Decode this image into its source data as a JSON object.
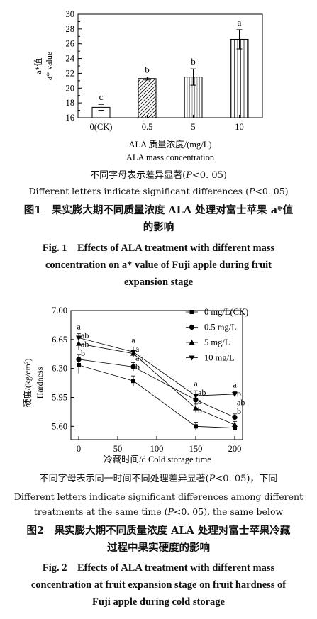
{
  "figure1": {
    "chart_data": {
      "type": "bar",
      "categories": [
        "0(CK)",
        "0.5",
        "5",
        "10"
      ],
      "values": [
        17.4,
        21.3,
        21.5,
        26.6
      ],
      "errors": [
        0.4,
        0.2,
        1.1,
        1.3
      ],
      "letters": [
        "c",
        "b",
        "b",
        "a"
      ],
      "patterns": [
        "none",
        "diagonal",
        "hatch-vertical-thin",
        "hatch-vertical"
      ],
      "ylim": [
        16,
        30
      ],
      "yticks": [
        "16",
        "18",
        "20",
        "22",
        "24",
        "26",
        "28",
        "30"
      ],
      "ylabel_cn": "a*值",
      "ylabel_en": "a* value",
      "xlabel_cn": "ALA 质量浓度/(mg/L)",
      "xlabel_en": "ALA mass concentration"
    },
    "note_cn": "不同字母表示差异显著(",
    "note_cn_p": "P",
    "note_cn_tail": "<0. 05)",
    "note_en": "Different letters indicate significant differences (",
    "note_en_p": "P",
    "note_en_tail": "<0. 05)",
    "caption_cn_1": "图1　果实膨大期不同质量浓度 ALA 处理对富士苹果 a*值",
    "caption_cn_2": "的影响",
    "caption_en_1": "Fig. 1　Effects of ALA treatment with different mass",
    "caption_en_2": "concentration on a* value of Fuji apple during fruit",
    "caption_en_3": "expansion stage"
  },
  "figure2": {
    "chart_data": {
      "type": "line",
      "x": [
        0,
        70,
        150,
        200
      ],
      "xticks": [
        "0",
        "50",
        "100",
        "150",
        "200"
      ],
      "xlim": [
        -10,
        210
      ],
      "ylim": [
        5.44,
        7.0
      ],
      "yticks": [
        "5.60",
        "5.95",
        "6.30",
        "6.65",
        "7.00"
      ],
      "ylabel_cn": "硬度/(kg/cm²)",
      "ylabel_en": "Hardness",
      "xlabel": "冷藏时间/d Cold storage time",
      "series": [
        {
          "name": "0 mg/L(CK)",
          "marker": "square",
          "values": [
            6.34,
            6.15,
            5.6,
            5.58
          ],
          "errors": [
            0.1,
            0.06,
            0.05,
            0.03
          ],
          "letters": [
            "b",
            "b",
            "b",
            "b"
          ]
        },
        {
          "name": "0.5 mg/L",
          "marker": "circle",
          "values": [
            6.41,
            6.32,
            5.92,
            5.71
          ],
          "errors": [
            0.06,
            0.05,
            0.06,
            0.04
          ],
          "letters": [
            "ab",
            "ab",
            "a",
            "ab"
          ]
        },
        {
          "name": "5 mg/L",
          "marker": "triangle-up",
          "values": [
            6.6,
            6.48,
            5.82,
            5.62
          ],
          "errors": [
            0.08,
            0.04,
            0.05,
            0.04
          ],
          "letters": [
            "ab",
            "a",
            "ab",
            "b"
          ]
        },
        {
          "name": "10 mg/L",
          "marker": "triangle-down",
          "values": [
            6.67,
            6.5,
            5.97,
            5.99
          ],
          "errors": [
            0.05,
            0.06,
            0.06,
            0.03
          ],
          "letters": [
            "a",
            "a",
            "a",
            "a"
          ]
        }
      ]
    },
    "note_cn": "不同字母表示同一时间不同处理差异显著(",
    "note_cn_p": "P",
    "note_cn_tail": "<0. 05)，下同",
    "note_en_1": "Different letters indicate significant differences among different",
    "note_en_2": "treatments at the same time (",
    "note_en_p": "P",
    "note_en_tail": "<0. 05), the same below",
    "caption_cn_1": "图2　果实膨大期不同质量浓度 ALA 处理对富士苹果冷藏",
    "caption_cn_2": "过程中果实硬度的影响",
    "caption_en_1": "Fig. 2　Effects of ALA treatment with different mass",
    "caption_en_2": "concentration at fruit expansion stage on fruit hardness of",
    "caption_en_3": "Fuji apple during cold storage"
  }
}
